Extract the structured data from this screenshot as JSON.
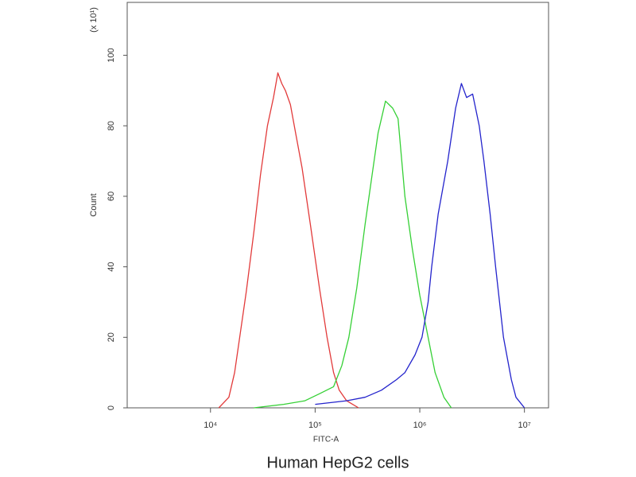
{
  "chart_data": {
    "type": "line",
    "caption": "Human HepG2 cells",
    "x_label": "FITC-A",
    "y_label": "Count",
    "y_unit": "(x 10¹)",
    "xscale": "log",
    "grid": false,
    "xlim": [
      1600,
      17000000
    ],
    "ylim": [
      0,
      115
    ],
    "xticks": [
      {
        "value": 10000,
        "label": "10⁴"
      },
      {
        "value": 100000,
        "label": "10⁵"
      },
      {
        "value": 1000000,
        "label": "10⁶"
      },
      {
        "value": 10000000,
        "label": "10⁷"
      }
    ],
    "yticks": [
      0,
      20,
      40,
      60,
      80,
      100
    ],
    "series": [
      {
        "color": "#e23a3a",
        "x": [
          12000,
          15000,
          17000,
          19000,
          22000,
          26000,
          30000,
          35000,
          40000,
          44000,
          48000,
          52000,
          58000,
          65000,
          75000,
          90000,
          110000,
          130000,
          150000,
          170000,
          200000,
          260000
        ],
        "values": [
          0,
          3,
          10,
          20,
          33,
          50,
          66,
          80,
          88,
          95,
          92,
          90,
          86,
          78,
          68,
          52,
          34,
          20,
          10,
          5,
          2,
          0
        ]
      },
      {
        "color": "#35d035",
        "x": [
          26000,
          50000,
          80000,
          110000,
          150000,
          180000,
          210000,
          250000,
          300000,
          350000,
          400000,
          470000,
          550000,
          620000,
          720000,
          850000,
          1000000,
          1200000,
          1400000,
          1700000,
          2000000
        ],
        "values": [
          0,
          1,
          2,
          4,
          6,
          12,
          20,
          34,
          52,
          66,
          78,
          87,
          85,
          82,
          60,
          45,
          32,
          20,
          10,
          3,
          0
        ]
      },
      {
        "color": "#2323cc",
        "x": [
          100000,
          200000,
          300000,
          430000,
          600000,
          720000,
          900000,
          1050000,
          1200000,
          1300000,
          1500000,
          1850000,
          2200000,
          2500000,
          2800000,
          3200000,
          3700000,
          4100000,
          4700000,
          5300000,
          6300000,
          7500000,
          8300000,
          10000000
        ],
        "values": [
          1,
          2,
          3,
          5,
          8,
          10,
          15,
          20,
          30,
          40,
          55,
          70,
          85,
          92,
          88,
          89,
          80,
          70,
          55,
          40,
          20,
          8,
          3,
          0
        ]
      }
    ]
  }
}
